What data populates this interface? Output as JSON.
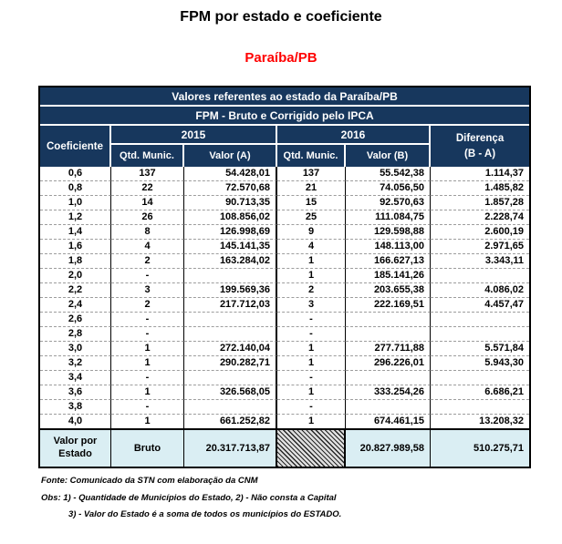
{
  "page": {
    "title": "FPM por estado e coeficiente",
    "subtitle": "Paraíba/PB"
  },
  "colors": {
    "header_navy": "#17375d",
    "footer_blue": "#daeef3",
    "subtitle_red": "#ff0000"
  },
  "table": {
    "banner1": "Valores referentes ao estado da Paraíba/PB",
    "banner2": "FPM - Bruto e Corrigido pelo IPCA",
    "columns": {
      "coeficiente": "Coeficiente",
      "year_2015": "2015",
      "year_2016": "2016",
      "qtd_munic": "Qtd. Munic.",
      "valor_a": "Valor (A)",
      "valor_b": "Valor (B)",
      "diferenca_line1": "Diferença",
      "diferenca_line2": "(B - A)"
    },
    "rows": [
      {
        "coef": "0,6",
        "qtd_2015": "137",
        "valor_a": "54.428,01",
        "qtd_2016": "137",
        "valor_b": "55.542,38",
        "dif": "1.114,37"
      },
      {
        "coef": "0,8",
        "qtd_2015": "22",
        "valor_a": "72.570,68",
        "qtd_2016": "21",
        "valor_b": "74.056,50",
        "dif": "1.485,82"
      },
      {
        "coef": "1,0",
        "qtd_2015": "14",
        "valor_a": "90.713,35",
        "qtd_2016": "15",
        "valor_b": "92.570,63",
        "dif": "1.857,28"
      },
      {
        "coef": "1,2",
        "qtd_2015": "26",
        "valor_a": "108.856,02",
        "qtd_2016": "25",
        "valor_b": "111.084,75",
        "dif": "2.228,74"
      },
      {
        "coef": "1,4",
        "qtd_2015": "8",
        "valor_a": "126.998,69",
        "qtd_2016": "9",
        "valor_b": "129.598,88",
        "dif": "2.600,19"
      },
      {
        "coef": "1,6",
        "qtd_2015": "4",
        "valor_a": "145.141,35",
        "qtd_2016": "4",
        "valor_b": "148.113,00",
        "dif": "2.971,65"
      },
      {
        "coef": "1,8",
        "qtd_2015": "2",
        "valor_a": "163.284,02",
        "qtd_2016": "1",
        "valor_b": "166.627,13",
        "dif": "3.343,11"
      },
      {
        "coef": "2,0",
        "qtd_2015": "-",
        "valor_a": "",
        "qtd_2016": "1",
        "valor_b": "185.141,26",
        "dif": ""
      },
      {
        "coef": "2,2",
        "qtd_2015": "3",
        "valor_a": "199.569,36",
        "qtd_2016": "2",
        "valor_b": "203.655,38",
        "dif": "4.086,02"
      },
      {
        "coef": "2,4",
        "qtd_2015": "2",
        "valor_a": "217.712,03",
        "qtd_2016": "3",
        "valor_b": "222.169,51",
        "dif": "4.457,47"
      },
      {
        "coef": "2,6",
        "qtd_2015": "-",
        "valor_a": "",
        "qtd_2016": "-",
        "valor_b": "",
        "dif": ""
      },
      {
        "coef": "2,8",
        "qtd_2015": "-",
        "valor_a": "",
        "qtd_2016": "-",
        "valor_b": "",
        "dif": ""
      },
      {
        "coef": "3,0",
        "qtd_2015": "1",
        "valor_a": "272.140,04",
        "qtd_2016": "1",
        "valor_b": "277.711,88",
        "dif": "5.571,84"
      },
      {
        "coef": "3,2",
        "qtd_2015": "1",
        "valor_a": "290.282,71",
        "qtd_2016": "1",
        "valor_b": "296.226,01",
        "dif": "5.943,30"
      },
      {
        "coef": "3,4",
        "qtd_2015": "-",
        "valor_a": "",
        "qtd_2016": "-",
        "valor_b": "",
        "dif": ""
      },
      {
        "coef": "3,6",
        "qtd_2015": "1",
        "valor_a": "326.568,05",
        "qtd_2016": "1",
        "valor_b": "333.254,26",
        "dif": "6.686,21"
      },
      {
        "coef": "3,8",
        "qtd_2015": "-",
        "valor_a": "",
        "qtd_2016": "-",
        "valor_b": "",
        "dif": ""
      },
      {
        "coef": "4,0",
        "qtd_2015": "1",
        "valor_a": "661.252,82",
        "qtd_2016": "1",
        "valor_b": "674.461,15",
        "dif": "13.208,32"
      }
    ],
    "footer": {
      "label": "Valor por Estado",
      "bruto": "Bruto",
      "valor_a": "20.317.713,87",
      "valor_b": "20.827.989,58",
      "dif": "510.275,71"
    }
  },
  "notes": {
    "fonte": "Fonte: Comunicado da STN com elaboração da CNM",
    "obs1": "Obs: 1) - Quantidade de Municípios  do Estado, 2) - Não consta a Capital",
    "obs2": "3) - Valor do Estado é a soma de todos os municípios do ESTADO."
  }
}
